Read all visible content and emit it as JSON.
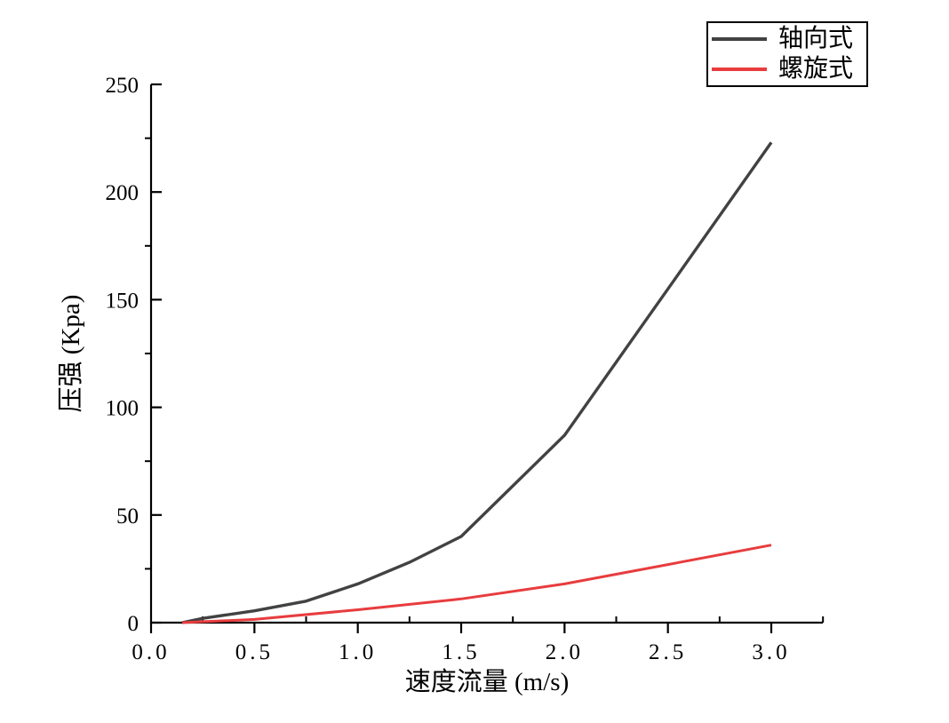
{
  "legend": {
    "entries": [
      {
        "label": "轴向式",
        "color": "#424242"
      },
      {
        "label": "螺旋式",
        "color": "#e83c3e"
      }
    ]
  },
  "chart_data": {
    "type": "line",
    "title": "",
    "xlabel": "速度流量 (m/s)",
    "ylabel": "压强 (Kpa)",
    "xlim": [
      0,
      3.25
    ],
    "ylim": [
      0,
      250
    ],
    "grid": false,
    "legend_position": "top-right-outside",
    "x_major_ticks": [
      0,
      0.5,
      1.0,
      1.5,
      2.0,
      2.5,
      3.0
    ],
    "x_tick_labels": [
      "0.0",
      "0.5",
      "1.0",
      "1.5",
      "2.0",
      "2.5",
      "3.0"
    ],
    "x_minor_ticks": [
      0.25,
      0.75,
      1.25,
      1.75,
      2.25,
      2.75,
      3.25
    ],
    "y_major_ticks": [
      0,
      50,
      100,
      150,
      200,
      250
    ],
    "y_tick_labels": [
      "0",
      "50",
      "100",
      "150",
      "200",
      "250"
    ],
    "y_minor_ticks": [
      25,
      75,
      125,
      175,
      225
    ],
    "series": [
      {
        "name": "轴向式",
        "color": "#424242",
        "line_width": 3.4,
        "points": [
          [
            0.15,
            0
          ],
          [
            0.25,
            2
          ],
          [
            0.5,
            5.5
          ],
          [
            0.75,
            10
          ],
          [
            1.0,
            18
          ],
          [
            1.25,
            28
          ],
          [
            1.5,
            40
          ],
          [
            2.0,
            87
          ],
          [
            2.5,
            155
          ],
          [
            3.0,
            223
          ]
        ]
      },
      {
        "name": "螺旋式",
        "color": "#e83c3e",
        "line_width": 3.0,
        "points": [
          [
            0.15,
            0
          ],
          [
            0.5,
            1.5
          ],
          [
            1.0,
            6
          ],
          [
            1.5,
            11
          ],
          [
            2.0,
            18
          ],
          [
            2.5,
            27
          ],
          [
            3.0,
            36
          ]
        ]
      }
    ]
  }
}
